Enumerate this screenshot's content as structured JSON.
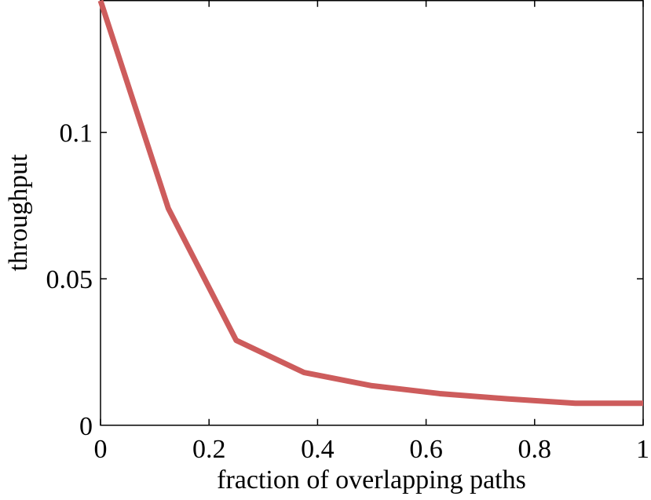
{
  "chart_data": {
    "type": "line",
    "title": "",
    "xlabel": "fraction of overlapping paths",
    "ylabel": "throughput",
    "xlim": [
      0,
      1
    ],
    "ylim": [
      0,
      0.145
    ],
    "grid": false,
    "legend": "none",
    "x_ticks": [
      0,
      0.2,
      0.4,
      0.6,
      0.8,
      1
    ],
    "x_tick_labels": [
      "0",
      "0.2",
      "0.4",
      "0.6",
      "0.8",
      "1"
    ],
    "y_ticks": [
      0,
      0.05,
      0.1
    ],
    "y_tick_labels": [
      "0",
      "0.05",
      "0.1"
    ],
    "series": [
      {
        "color": "#cd5c5c",
        "x": [
          0,
          0.125,
          0.25,
          0.375,
          0.5,
          0.625,
          0.75,
          0.875,
          1
        ],
        "y": [
          0.145,
          0.074,
          0.029,
          0.018,
          0.0135,
          0.0108,
          0.009,
          0.0075,
          0.0075
        ]
      }
    ]
  }
}
